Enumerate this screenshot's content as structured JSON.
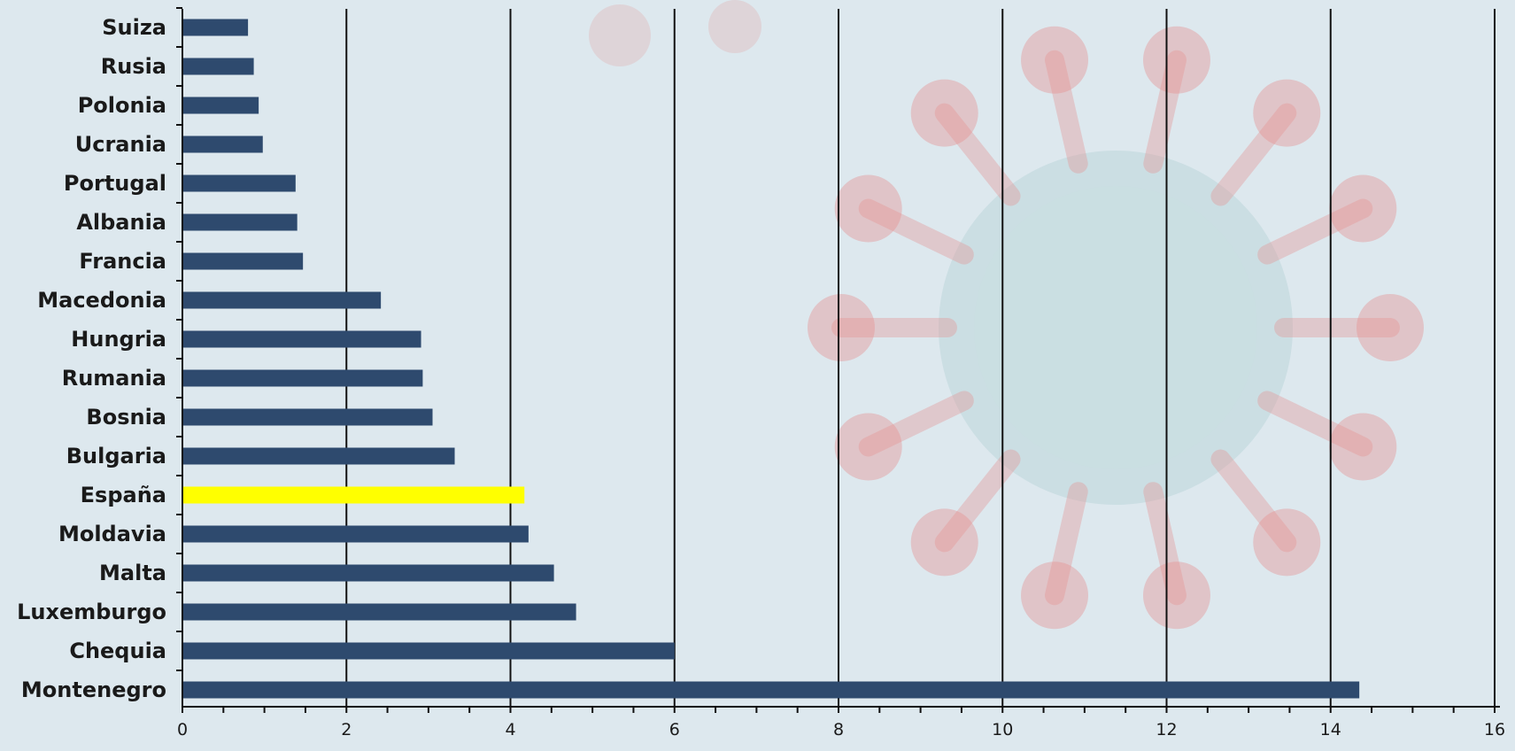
{
  "colors": {
    "background": "#dde8ee",
    "bar": "#2e4a6e",
    "highlight_bar": "#ffff00",
    "gridline": "#111111",
    "decor_virus": "#e58f8f"
  },
  "background_decor": "coronavirus-illustration",
  "chart_data": {
    "type": "bar",
    "orientation": "horizontal",
    "categories": [
      "Suiza",
      "Rusia",
      "Polonia",
      "Ucrania",
      "Portugal",
      "Albania",
      "Francia",
      "Macedonia",
      "Hungria",
      "Rumania",
      "Bosnia",
      "Bulgaria",
      "España",
      "Moldavia",
      "Malta",
      "Luxemburgo",
      "Chequia",
      "Montenegro"
    ],
    "values": [
      0.8,
      0.87,
      0.93,
      0.98,
      1.38,
      1.4,
      1.47,
      2.42,
      2.91,
      2.93,
      3.05,
      3.32,
      4.17,
      4.22,
      4.53,
      4.8,
      6.0,
      14.35
    ],
    "highlight_category": "España",
    "xlim": [
      0,
      16
    ],
    "xticks": [
      "0",
      "2",
      "4",
      "6",
      "8",
      "10",
      "12",
      "14",
      "16"
    ],
    "minor_tick_step": 0.5,
    "grid": "vertical major gridlines",
    "title": "",
    "xlabel": "",
    "ylabel": ""
  }
}
